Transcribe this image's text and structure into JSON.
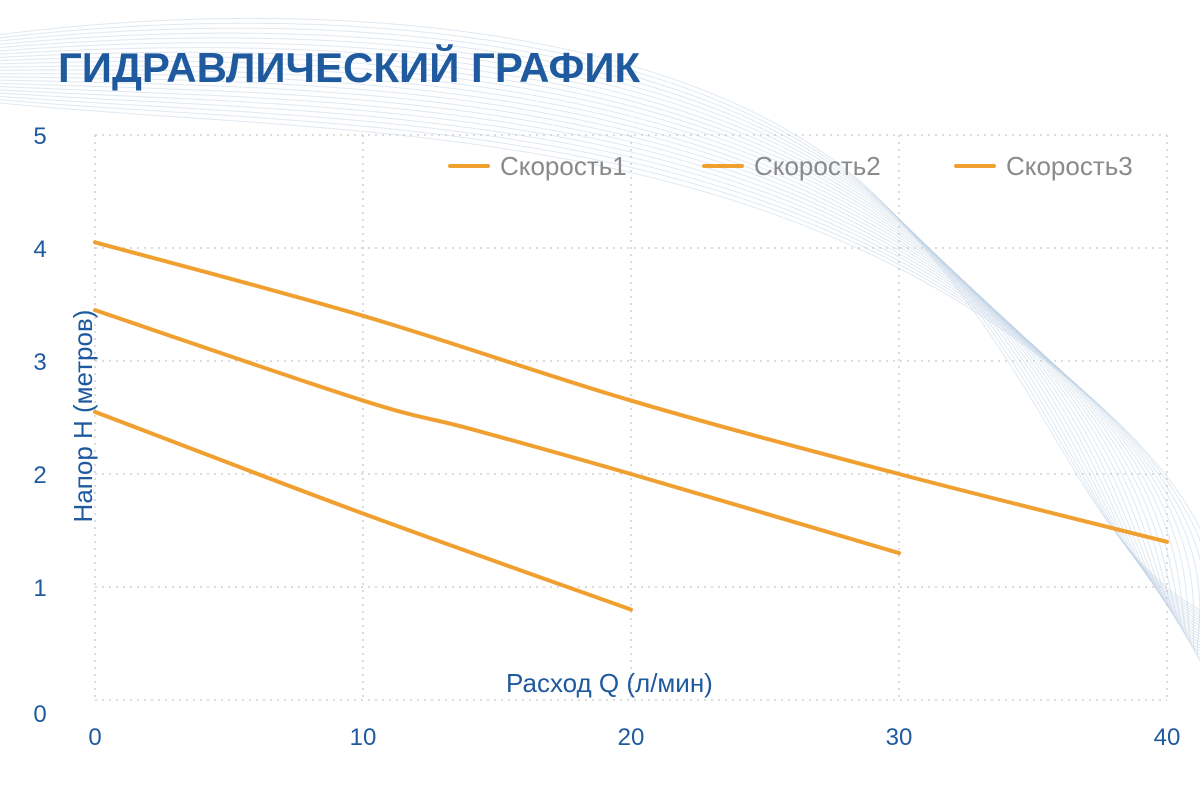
{
  "chart_data": {
    "type": "line",
    "title": "ГИДРАВЛИЧЕСКИЙ ГРАФИК",
    "xlabel": "Расход Q (л/мин)",
    "ylabel": "Напор Н (метров)",
    "xlim": [
      0,
      40
    ],
    "ylim": [
      0,
      5
    ],
    "xticks": [
      "0",
      "10",
      "20",
      "30",
      "40"
    ],
    "yticks": [
      "0",
      "1",
      "2",
      "3",
      "4",
      "5"
    ],
    "grid": true,
    "legend_position": "top-right",
    "series": [
      {
        "name": "Скорость1",
        "color": "#f0a030",
        "x": [
          0,
          10,
          20,
          30,
          40
        ],
        "y": [
          4.05,
          3.4,
          2.65,
          2.0,
          1.4
        ]
      },
      {
        "name": "Скорость2",
        "color": "#f0a030",
        "x": [
          0,
          10,
          14,
          20,
          30
        ],
        "y": [
          3.45,
          2.65,
          2.4,
          2.0,
          1.3
        ]
      },
      {
        "name": "Скорость3",
        "color": "#f0a030",
        "x": [
          0,
          10,
          20
        ],
        "y": [
          2.55,
          1.65,
          0.8
        ]
      }
    ]
  }
}
